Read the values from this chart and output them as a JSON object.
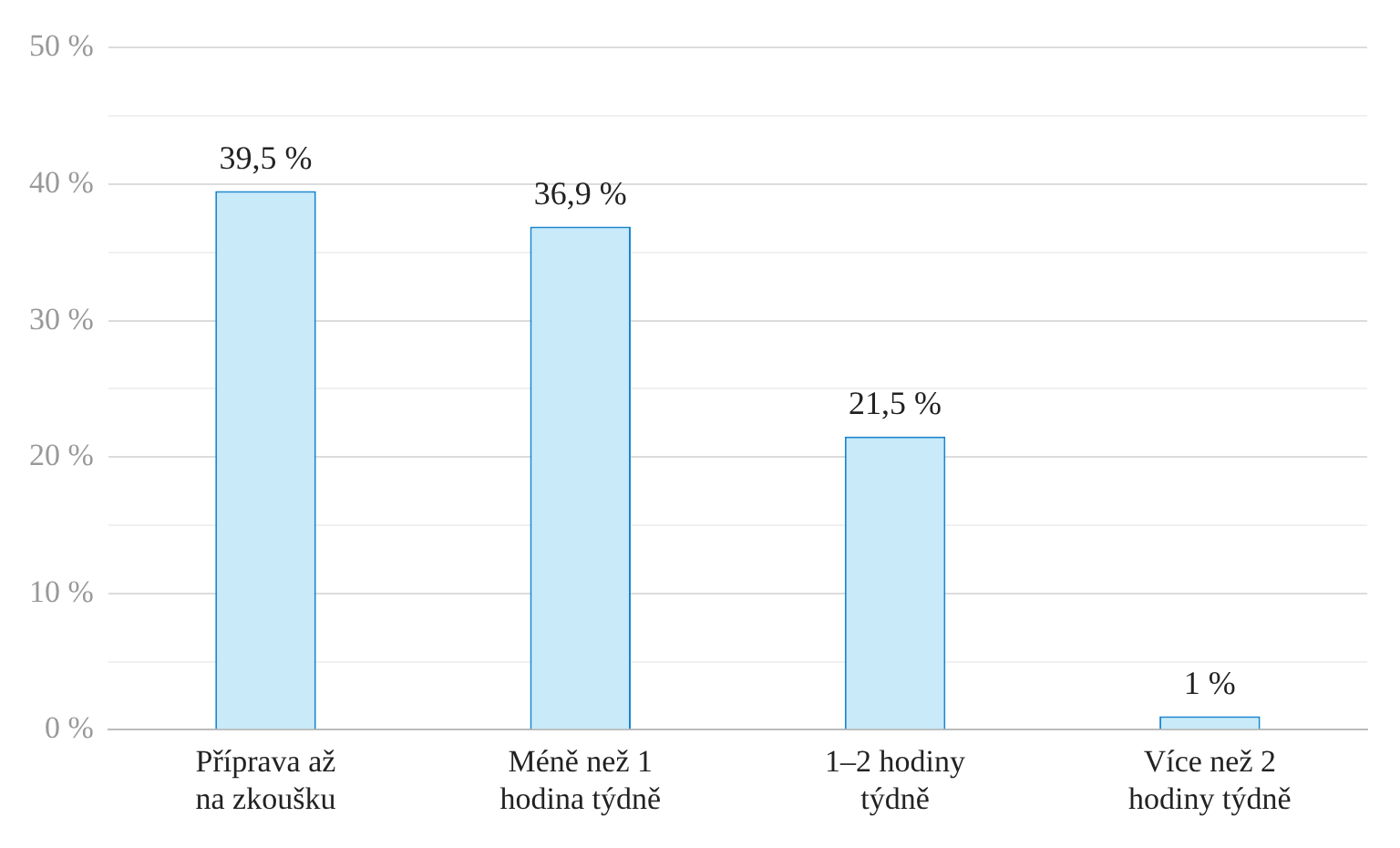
{
  "chart_data": {
    "type": "bar",
    "categories": [
      "Příprava až na zkoušku",
      "Méně než 1 hodina týdně",
      "1–2 hodiny týdně",
      "Více než 2 hodiny týdně"
    ],
    "values": [
      39.5,
      36.9,
      21.5,
      1
    ],
    "value_labels": [
      "39,5 %",
      "36,9 %",
      "21,5 %",
      "1 %"
    ],
    "color": "#c8eaf9",
    "ylim": [
      0,
      50
    ],
    "yticks": [
      {
        "value": 0,
        "label": "0 %"
      },
      {
        "value": 5,
        "label": null
      },
      {
        "value": 10,
        "label": "10 %"
      },
      {
        "value": 15,
        "label": null
      },
      {
        "value": 20,
        "label": "20 %"
      },
      {
        "value": 25,
        "label": null
      },
      {
        "value": 30,
        "label": "30 %"
      },
      {
        "value": 35,
        "label": null
      },
      {
        "value": 40,
        "label": "40 %"
      },
      {
        "value": 45,
        "label": null
      },
      {
        "value": 50,
        "label": "50 %"
      }
    ],
    "grid": "y"
  }
}
